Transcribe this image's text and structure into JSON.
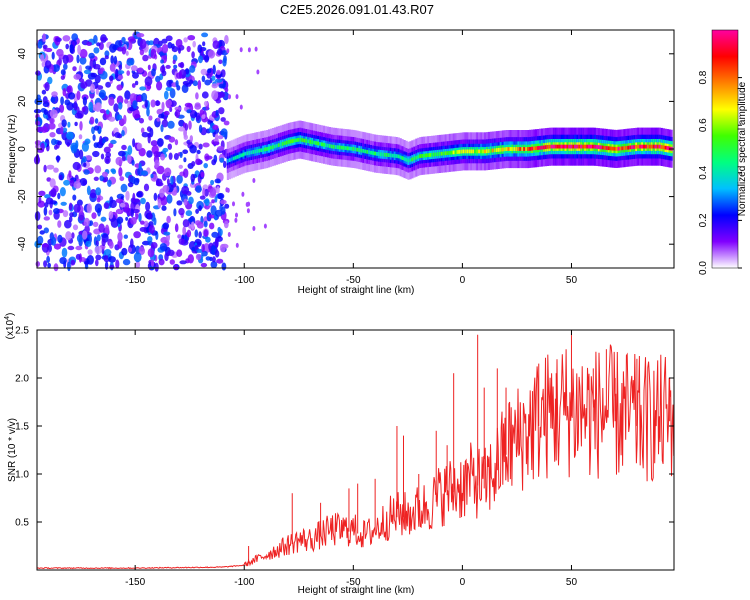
{
  "figure_title": "C2E5.2026.091.01.43.R07",
  "chart_data": [
    {
      "type": "heatmap",
      "title": "C2E5.2026.091.01.43.R07",
      "xlabel": "Height of straight line (km)",
      "ylabel": "Frequency (Hz)",
      "xlim": [
        -195,
        97
      ],
      "ylim": [
        -50,
        50
      ],
      "xticks": [
        -150,
        -100,
        -50,
        0,
        50
      ],
      "yticks": [
        -40,
        -20,
        0,
        20,
        40
      ],
      "xtick_labels": [
        "-150",
        "-100",
        "-50",
        "0",
        "50"
      ],
      "ytick_labels": [
        "-40",
        "-20",
        "0",
        "20",
        "40"
      ],
      "noise_region": {
        "x_start": -195,
        "x_end": -108,
        "freq_min": -50,
        "freq_max": 48,
        "amplitude_range": [
          0.05,
          0.3
        ]
      },
      "ridge": {
        "description": "Doppler peak frequency vs height",
        "x": [
          -108,
          -100,
          -90,
          -80,
          -75,
          -70,
          -60,
          -50,
          -40,
          -30,
          -25,
          -20,
          -10,
          0,
          10,
          20,
          30,
          40,
          50,
          60,
          70,
          80,
          90,
          96
        ],
        "freq": [
          -5,
          -2,
          0,
          3,
          4,
          3,
          1,
          0,
          -2,
          -3,
          -5,
          -3,
          -2,
          -1,
          -1,
          0,
          0,
          1,
          1,
          1,
          0,
          1,
          1,
          0
        ],
        "peak_amplitude": [
          0.35,
          0.4,
          0.45,
          0.5,
          0.5,
          0.5,
          0.45,
          0.45,
          0.45,
          0.45,
          0.45,
          0.5,
          0.55,
          0.6,
          0.65,
          0.7,
          0.8,
          0.9,
          0.95,
          0.95,
          0.9,
          0.9,
          0.95,
          0.9
        ]
      },
      "colorbar": {
        "label": "Normalized spectral amplitude",
        "range": [
          0,
          1
        ],
        "ticks": [
          0.0,
          0.2,
          0.4,
          0.6,
          0.8
        ],
        "tick_labels": [
          "0.0",
          "0.2",
          "0.4",
          "0.6",
          "0.8"
        ],
        "colors": [
          "#ffffff",
          "#8000ff",
          "#0000ff",
          "#00c0ff",
          "#00ff80",
          "#40ff00",
          "#ffff00",
          "#ff8000",
          "#ff0000",
          "#ff00a0"
        ]
      }
    },
    {
      "type": "line",
      "title": "",
      "xlabel": "Height of straight line (km)",
      "ylabel": "SNR (10 * v/v)",
      "scale_label": "(x10",
      "scale_exponent": "4",
      "scale_suffix": ")",
      "xlim": [
        -195,
        97
      ],
      "ylim": [
        0,
        2.5
      ],
      "xticks": [
        -150,
        -100,
        -50,
        0,
        50
      ],
      "yticks": [
        0.5,
        1.0,
        1.5,
        2.0,
        2.5
      ],
      "xtick_labels": [
        "-150",
        "-100",
        "-50",
        "0",
        "50"
      ],
      "ytick_labels": [
        "0.5",
        "1.0",
        "1.5",
        "2.0",
        "2.5"
      ],
      "series": [
        {
          "name": "SNR",
          "color": "#ee2222",
          "x": [
            -195,
            -150,
            -110,
            -100,
            -95,
            -90,
            -85,
            -80,
            -75,
            -70,
            -65,
            -60,
            -55,
            -50,
            -45,
            -40,
            -35,
            -30,
            -25,
            -20,
            -15,
            -10,
            -5,
            0,
            5,
            10,
            15,
            20,
            25,
            30,
            35,
            40,
            45,
            50,
            55,
            60,
            65,
            70,
            75,
            80,
            85,
            90,
            95,
            97
          ],
          "y": [
            0.02,
            0.02,
            0.03,
            0.05,
            0.1,
            0.15,
            0.2,
            0.25,
            0.3,
            0.3,
            0.35,
            0.4,
            0.4,
            0.4,
            0.35,
            0.4,
            0.5,
            0.55,
            0.55,
            0.6,
            0.65,
            0.75,
            0.8,
            0.85,
            0.9,
            0.85,
            1.0,
            1.2,
            1.3,
            1.4,
            1.5,
            1.55,
            1.6,
            1.6,
            1.6,
            1.55,
            1.6,
            1.55,
            1.55,
            1.5,
            1.5,
            1.5,
            1.55,
            1.55
          ]
        }
      ],
      "spikes": [
        {
          "x": -98,
          "y": 0.25
        },
        {
          "x": -78,
          "y": 0.8
        },
        {
          "x": -65,
          "y": 0.7
        },
        {
          "x": -52,
          "y": 0.85
        },
        {
          "x": -48,
          "y": 0.9
        },
        {
          "x": -40,
          "y": 0.95
        },
        {
          "x": -30,
          "y": 1.5
        },
        {
          "x": -27,
          "y": 1.4
        },
        {
          "x": -20,
          "y": 1.0
        },
        {
          "x": -12,
          "y": 1.45
        },
        {
          "x": -7,
          "y": 1.3
        },
        {
          "x": -4,
          "y": 2.05
        },
        {
          "x": 7,
          "y": 2.45
        },
        {
          "x": 10,
          "y": 1.9
        },
        {
          "x": 16,
          "y": 2.1
        },
        {
          "x": 20,
          "y": 1.9
        },
        {
          "x": 35,
          "y": 2.15
        },
        {
          "x": 43,
          "y": 2.05
        },
        {
          "x": 50,
          "y": 2.5
        },
        {
          "x": 60,
          "y": 2.1
        },
        {
          "x": 66,
          "y": 2.3
        },
        {
          "x": 70,
          "y": 2.0
        },
        {
          "x": 80,
          "y": 2.2
        },
        {
          "x": 95,
          "y": 2.0
        }
      ]
    }
  ]
}
